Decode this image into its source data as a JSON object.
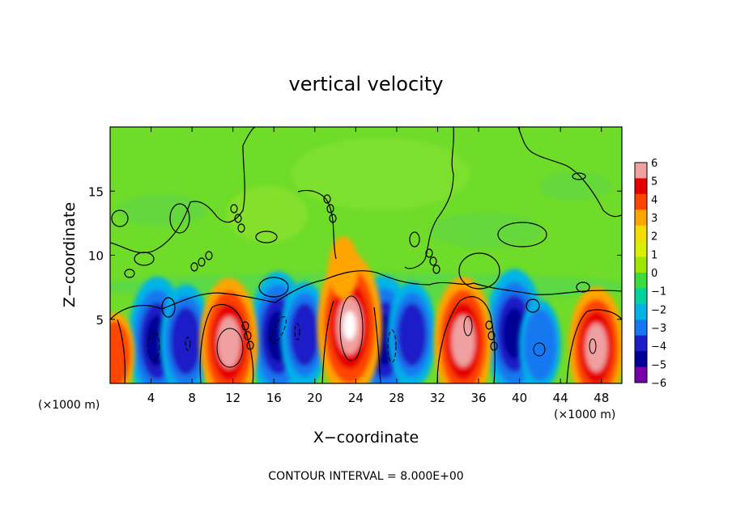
{
  "chart_data": {
    "type": "heatmap",
    "title": "vertical velocity",
    "xlabel": "X−coordinate",
    "ylabel": "Z−coordinate",
    "x_unit_left": "(×1000 m)",
    "x_unit_right": "(×1000 m)",
    "footer": "CONTOUR INTERVAL = 8.000E+00",
    "xlim": [
      0,
      50
    ],
    "ylim": [
      0,
      20
    ],
    "x_ticks": [
      4,
      8,
      12,
      16,
      20,
      24,
      28,
      32,
      36,
      40,
      44,
      48
    ],
    "y_ticks": [
      5,
      10,
      15
    ],
    "colorbar": {
      "range": [
        -6,
        6
      ],
      "tick_values": [
        6,
        5,
        4,
        3,
        2,
        1,
        0,
        -1,
        -2,
        -3,
        -4,
        -5,
        -6
      ],
      "tick_labels": [
        "6",
        "5",
        "4",
        "3",
        "2",
        "1",
        "0",
        "−1",
        "−2",
        "−3",
        "−4",
        "−5",
        "−6"
      ],
      "colors": [
        "#f0a0a0",
        "#e60000",
        "#ff4400",
        "#ffa500",
        "#f5dc00",
        "#d8f000",
        "#a0e600",
        "#3cdc3c",
        "#00d2a0",
        "#00b4e6",
        "#1478f0",
        "#1e1ec8",
        "#000096",
        "#7800aa"
      ]
    },
    "updraft_cores": [
      {
        "x": 0.5,
        "z": 2.3,
        "w": 3.5
      },
      {
        "x": 11.6,
        "z": 3.2,
        "w": 6.5
      },
      {
        "x": 23.4,
        "z": 4.5,
        "w": 7.5
      },
      {
        "x": 34.5,
        "z": 3.3,
        "w": 6.5
      },
      {
        "x": 47.5,
        "z": 2.8,
        "w": 6.0
      },
      {
        "x": 22.8,
        "z": 9.0,
        "w": 2.2
      }
    ],
    "downdraft_cores": [
      {
        "x": 4.6,
        "z": 3.3,
        "w": -6.5
      },
      {
        "x": 7.4,
        "z": 3.3,
        "w": -5.5
      },
      {
        "x": 16.4,
        "z": 3.7,
        "w": -6.5
      },
      {
        "x": 19.0,
        "z": 3.8,
        "w": -5.0
      },
      {
        "x": 26.8,
        "z": 3.4,
        "w": -6.5
      },
      {
        "x": 29.5,
        "z": 3.8,
        "w": -5.0
      },
      {
        "x": 39.5,
        "z": 3.9,
        "w": -6.5
      },
      {
        "x": 42.0,
        "z": 3.0,
        "w": -4.0
      }
    ]
  }
}
